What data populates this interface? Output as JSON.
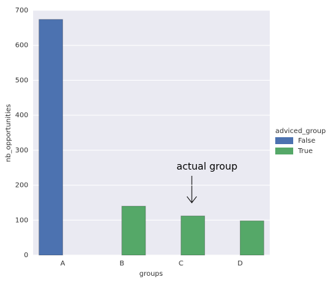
{
  "chart_data": {
    "type": "bar",
    "categories": [
      "A",
      "B",
      "C",
      "D"
    ],
    "series": [
      {
        "name": "False",
        "color": "#4c72b0",
        "values": [
          674,
          null,
          null,
          null
        ]
      },
      {
        "name": "True",
        "color": "#55a868",
        "values": [
          null,
          140,
          112,
          98
        ]
      }
    ],
    "xlabel": "groups",
    "ylabel": "nb_opportunities",
    "legend_title": "adviced_group",
    "annotation": "actual group",
    "ylim": [
      0,
      700
    ],
    "yticks": [
      0,
      100,
      200,
      300,
      400,
      500,
      600,
      700
    ],
    "grid": true,
    "legend": "right"
  }
}
